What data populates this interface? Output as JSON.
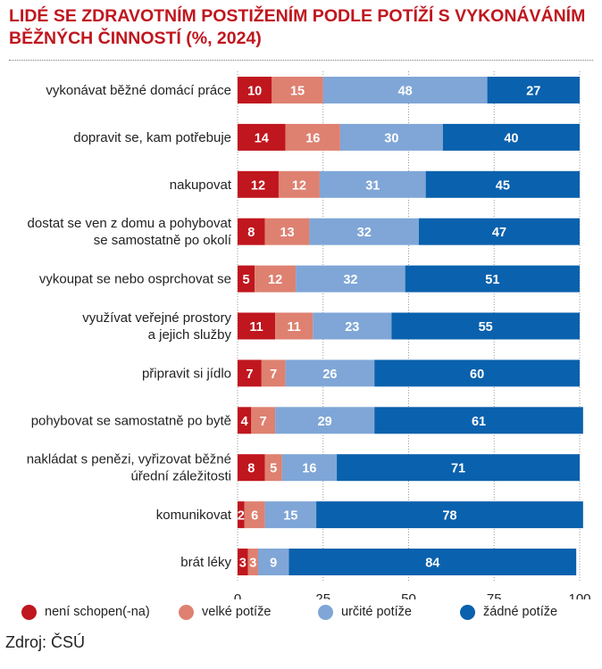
{
  "chart_data": {
    "type": "bar",
    "orientation": "horizontal",
    "stacked": true,
    "title_lines": [
      "LIDÉ SE ZDRAVOTNÍM POSTIŽENÍM PODLE POTÍŽÍ S VYKONÁVÁNÍM",
      "BĚŽNÝCH ČINNOSTÍ (%, 2024)"
    ],
    "categories": [
      [
        "vykonávat běžné domácí práce"
      ],
      [
        "dopravit se, kam potřebuje"
      ],
      [
        "nakupovat"
      ],
      [
        "dostat se ven z domu a pohybovat",
        "se samostatně po okolí"
      ],
      [
        "vykoupat se nebo osprchovat se"
      ],
      [
        "využívat veřejné prostory",
        "a jejich služby"
      ],
      [
        "připravit si jídlo"
      ],
      [
        "pohybovat se samostatně po bytě"
      ],
      [
        "nakládat s penězi, vyřizovat běžné",
        "úřední záležitosti"
      ],
      [
        "komunikovat"
      ],
      [
        "brát léky"
      ]
    ],
    "series": [
      {
        "name": "není schopen(-na)",
        "color": "#c0161e",
        "values": [
          10,
          14,
          12,
          8,
          5,
          11,
          7,
          4,
          8,
          2,
          3
        ]
      },
      {
        "name": "velké potíže",
        "color": "#de8171",
        "values": [
          15,
          16,
          12,
          13,
          12,
          11,
          7,
          7,
          5,
          6,
          3
        ]
      },
      {
        "name": "určité potíže",
        "color": "#7fa6d7",
        "values": [
          48,
          30,
          31,
          32,
          32,
          23,
          26,
          29,
          16,
          15,
          9
        ]
      },
      {
        "name": "žádné potíže",
        "color": "#0a61ad",
        "values": [
          27,
          40,
          45,
          47,
          51,
          55,
          60,
          61,
          71,
          78,
          84
        ]
      }
    ],
    "xlim": [
      0,
      100
    ],
    "xticks": [
      0,
      25,
      50,
      75,
      100
    ],
    "legend_position": "bottom",
    "grid": true
  },
  "source": "Zdroj: ČSÚ"
}
